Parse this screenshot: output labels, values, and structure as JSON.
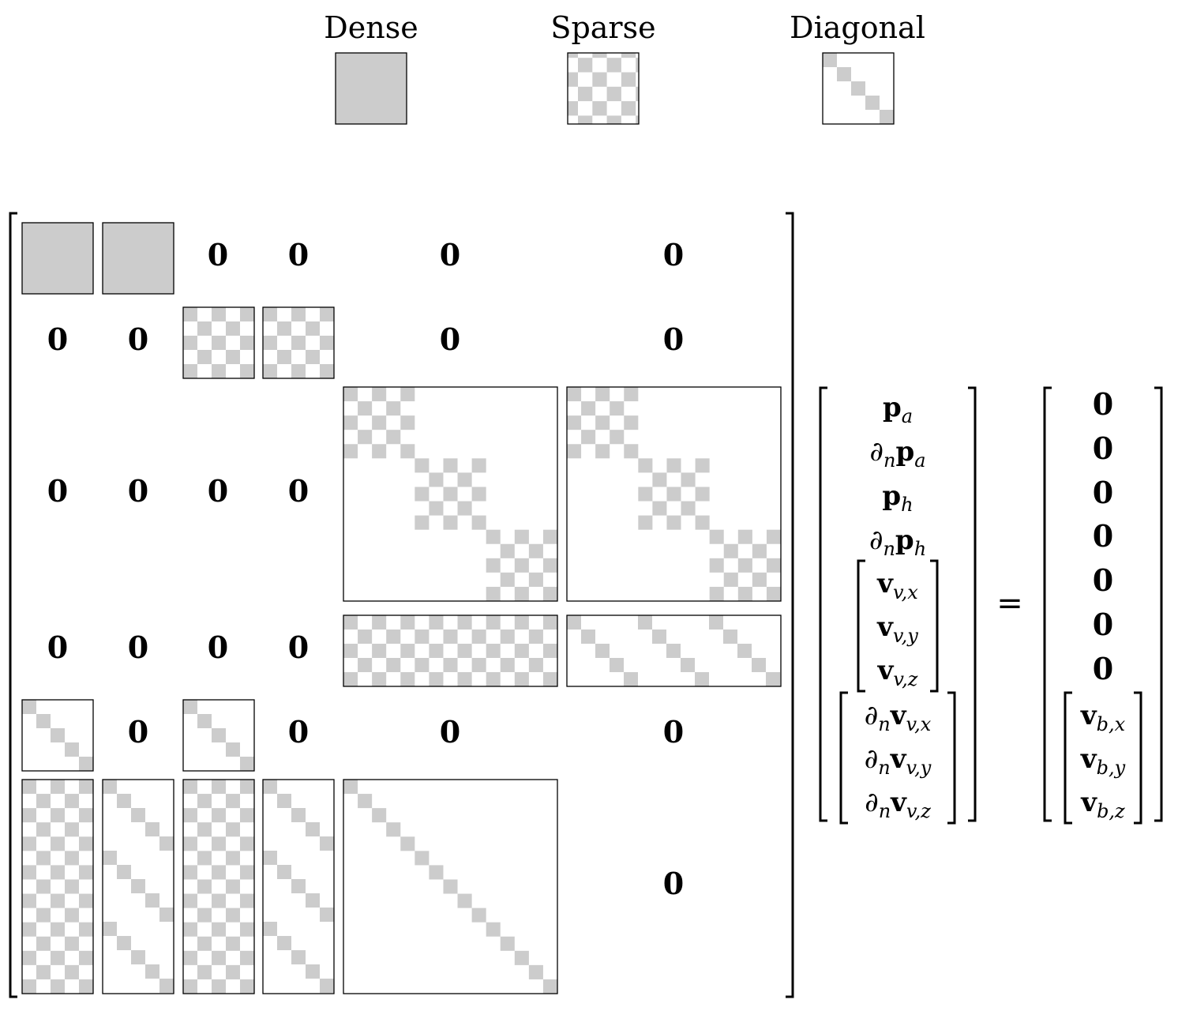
{
  "legend": {
    "dense_label": "Dense",
    "sparse_label": "Sparse",
    "diagonal_label": "Diagonal"
  },
  "zero_symbol": "0",
  "matrix": {
    "rows": [
      [
        "dense",
        "dense",
        "zero",
        "zero",
        "zero",
        "zero"
      ],
      [
        "zero",
        "zero",
        "sparse",
        "sparse",
        "zero",
        "zero"
      ],
      [
        "zero",
        "zero",
        "zero",
        "zero",
        "block-diag-sparse",
        "block-diag-sparse"
      ],
      [
        "zero",
        "zero",
        "zero",
        "zero",
        "sparse",
        "diagonal-strips"
      ],
      [
        "diagonal",
        "zero",
        "diagonal",
        "zero",
        "zero",
        "zero"
      ],
      [
        "sparse-tall",
        "diagonal-tall",
        "sparse-tall",
        "diagonal-tall",
        "diagonal",
        "zero"
      ]
    ]
  },
  "unknown_vector": {
    "p_a": {
      "sym": "p",
      "sub": "a"
    },
    "dn_p_a": {
      "d": "∂",
      "dsub": "n",
      "sym": "p",
      "sub": "a"
    },
    "p_h": {
      "sym": "p",
      "sub": "h"
    },
    "dn_p_h": {
      "d": "∂",
      "dsub": "n",
      "sym": "p",
      "sub": "h"
    },
    "v_vx": {
      "sym": "v",
      "sub": "v,x"
    },
    "v_vy": {
      "sym": "v",
      "sub": "v,y"
    },
    "v_vz": {
      "sym": "v",
      "sub": "v,z"
    },
    "dn_v_vx": {
      "d": "∂",
      "dsub": "n",
      "sym": "v",
      "sub": "v,x"
    },
    "dn_v_vy": {
      "d": "∂",
      "dsub": "n",
      "sym": "v",
      "sub": "v,y"
    },
    "dn_v_vz": {
      "d": "∂",
      "dsub": "n",
      "sym": "v",
      "sub": "v,z"
    }
  },
  "equals_sign": "=",
  "rhs_vector": {
    "zeros": [
      "0",
      "0",
      "0",
      "0",
      "0",
      "0",
      "0"
    ],
    "v_bx": {
      "sym": "v",
      "sub": "b,x"
    },
    "v_by": {
      "sym": "v",
      "sub": "b,y"
    },
    "v_bz": {
      "sym": "v",
      "sub": "b,z"
    }
  },
  "colors": {
    "fill_gray": "#cccccc",
    "stroke": "#000000",
    "background": "#ffffff"
  }
}
